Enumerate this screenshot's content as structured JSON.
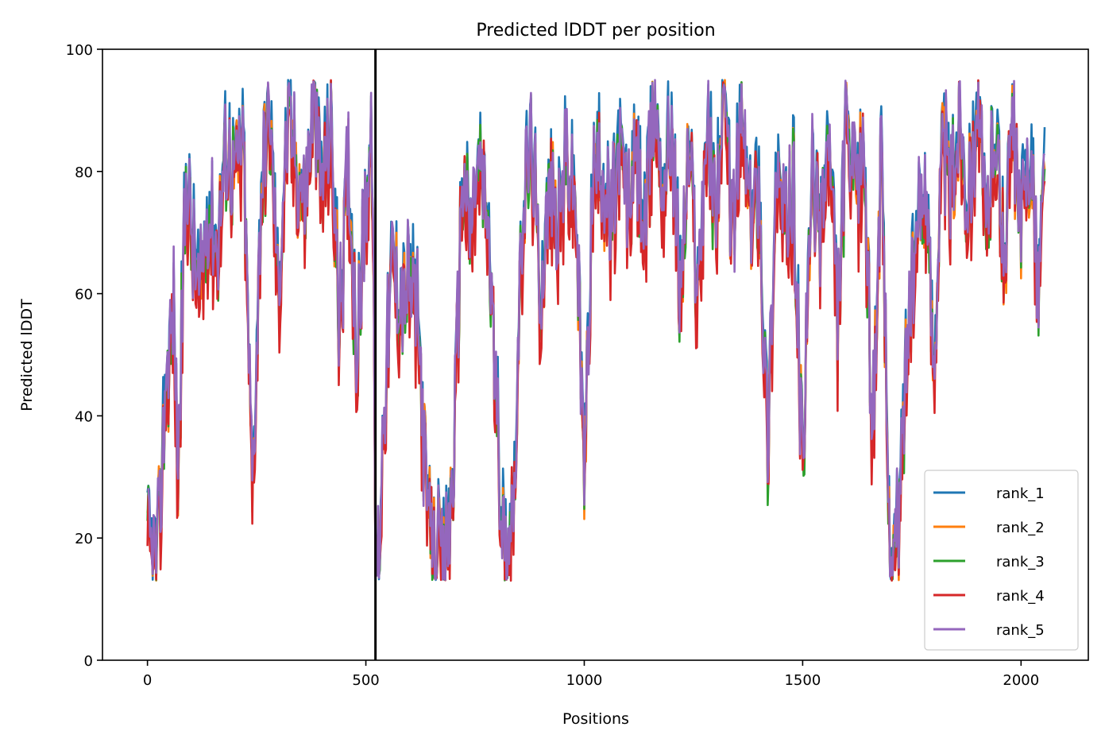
{
  "chart_data": {
    "type": "line",
    "title": "Predicted lDDT per position",
    "xlabel": "Positions",
    "ylabel": "Predicted lDDT",
    "xlim": [
      -103,
      2154
    ],
    "ylim": [
      0,
      100
    ],
    "x_ticks": [
      0,
      500,
      1000,
      1500,
      2000
    ],
    "y_ticks": [
      0,
      20,
      40,
      60,
      80,
      100
    ],
    "x_tick_labels": [
      "0",
      "500",
      "1000",
      "1500",
      "2000"
    ],
    "y_tick_labels": [
      "0",
      "20",
      "40",
      "60",
      "80",
      "100"
    ],
    "vertical_line": {
      "x": 522,
      "color": "#000000"
    },
    "grid": false,
    "legend_position": "lower right",
    "x_max": 2054,
    "profile": {
      "x": [
        0,
        10,
        20,
        30,
        40,
        50,
        60,
        70,
        80,
        90,
        100,
        120,
        140,
        160,
        180,
        200,
        220,
        240,
        260,
        280,
        300,
        320,
        340,
        360,
        380,
        400,
        420,
        440,
        460,
        480,
        500,
        515,
        522,
        530,
        540,
        560,
        580,
        600,
        620,
        640,
        660,
        680,
        700,
        720,
        740,
        760,
        780,
        800,
        820,
        840,
        860,
        880,
        900,
        920,
        940,
        960,
        980,
        1000,
        1020,
        1040,
        1060,
        1080,
        1100,
        1120,
        1140,
        1160,
        1180,
        1200,
        1220,
        1240,
        1260,
        1280,
        1300,
        1320,
        1340,
        1360,
        1380,
        1400,
        1420,
        1440,
        1460,
        1480,
        1500,
        1520,
        1540,
        1560,
        1580,
        1600,
        1620,
        1640,
        1660,
        1680,
        1700,
        1720,
        1740,
        1760,
        1780,
        1800,
        1820,
        1840,
        1860,
        1880,
        1900,
        1920,
        1940,
        1960,
        1980,
        2000,
        2020,
        2040,
        2054
      ],
      "y": [
        20,
        18,
        16,
        25,
        44,
        50,
        58,
        30,
        60,
        82,
        70,
        60,
        75,
        68,
        85,
        80,
        84,
        28,
        78,
        90,
        60,
        88,
        82,
        75,
        90,
        78,
        88,
        55,
        82,
        50,
        78,
        85,
        16,
        18,
        40,
        65,
        60,
        62,
        55,
        25,
        18,
        16,
        30,
        80,
        70,
        82,
        72,
        40,
        16,
        30,
        75,
        85,
        60,
        78,
        72,
        82,
        76,
        30,
        80,
        82,
        70,
        84,
        75,
        82,
        70,
        92,
        78,
        88,
        60,
        85,
        60,
        88,
        75,
        92,
        70,
        90,
        72,
        80,
        35,
        82,
        70,
        78,
        30,
        80,
        72,
        85,
        55,
        88,
        75,
        85,
        38,
        82,
        16,
        22,
        55,
        68,
        80,
        50,
        85,
        78,
        90,
        75,
        92,
        70,
        90,
        65,
        88,
        70,
        85,
        60,
        82
      ]
    },
    "series": [
      {
        "name": "rank_1",
        "color": "#1f77b4",
        "seed": 1,
        "offset": 1.5,
        "amplitude": 5
      },
      {
        "name": "rank_2",
        "color": "#ff7f0e",
        "seed": 2,
        "offset": -1.0,
        "amplitude": 5
      },
      {
        "name": "rank_3",
        "color": "#2ca02c",
        "seed": 3,
        "offset": -1.5,
        "amplitude": 5
      },
      {
        "name": "rank_4",
        "color": "#d62728",
        "seed": 4,
        "offset": -3.0,
        "amplitude": 9
      },
      {
        "name": "rank_5",
        "color": "#9467bd",
        "seed": 5,
        "offset": 0.0,
        "amplitude": 6
      }
    ]
  }
}
